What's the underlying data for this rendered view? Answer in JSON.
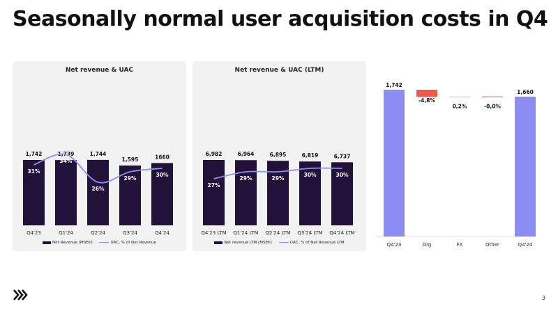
{
  "slide": {
    "title": "Seasonally normal user acquisition costs in Q4",
    "page_number": "3"
  },
  "colors": {
    "bar": "#22123a",
    "line": "#8f8ff2",
    "bridge_total": "#8c8cf2",
    "negative": "#f15a4a",
    "panel_bg": "#f2f2f2"
  },
  "chart_data": [
    {
      "type": "bar",
      "title": "Net revenue & UAC",
      "categories": [
        "Q4'23",
        "Q1'24",
        "Q2'24",
        "Q3'24",
        "Q4'24"
      ],
      "series": [
        {
          "name": "Net Revenue (MSEK)",
          "values": [
            1742,
            1739,
            1744,
            1595,
            1660
          ],
          "labels": [
            "1,742",
            "1,739",
            "1,744",
            "1,595",
            "1660"
          ]
        },
        {
          "name": "UAC, % of Net Revenue",
          "type": "line",
          "values": [
            31,
            34,
            26,
            29,
            30
          ],
          "labels": [
            "31%",
            "34%",
            "26%",
            "29%",
            "30%"
          ]
        }
      ]
    },
    {
      "type": "bar",
      "title": "Net revenue & UAC (LTM)",
      "categories": [
        "Q4'23 LTM",
        "Q1'24 LTM",
        "Q2'24 LTM",
        "Q3'24 LTM",
        "Q4'24 LTM"
      ],
      "series": [
        {
          "name": "Net revenue LTM (MSEK)",
          "values": [
            6982,
            6964,
            6895,
            6819,
            6737
          ],
          "labels": [
            "6,982",
            "6,964",
            "6,895",
            "6,819",
            "6,737"
          ]
        },
        {
          "name": "UAC, % of Net Revenue LTM",
          "type": "line",
          "values": [
            27,
            29,
            29,
            30,
            30
          ],
          "labels": [
            "27%",
            "29%",
            "29%",
            "30%",
            "30%"
          ]
        }
      ]
    },
    {
      "type": "bar",
      "subtype": "waterfall",
      "categories": [
        "Q4'23",
        "Org",
        "FX",
        "Other",
        "Q4'24"
      ],
      "values": [
        1742,
        -83.6,
        3.5,
        -0.5,
        1660
      ],
      "kinds": [
        "total",
        "delta",
        "delta",
        "delta",
        "total"
      ],
      "labels": [
        "1,742",
        "-4,8%",
        "0,2%",
        "-0,0%",
        "1,660"
      ]
    }
  ]
}
